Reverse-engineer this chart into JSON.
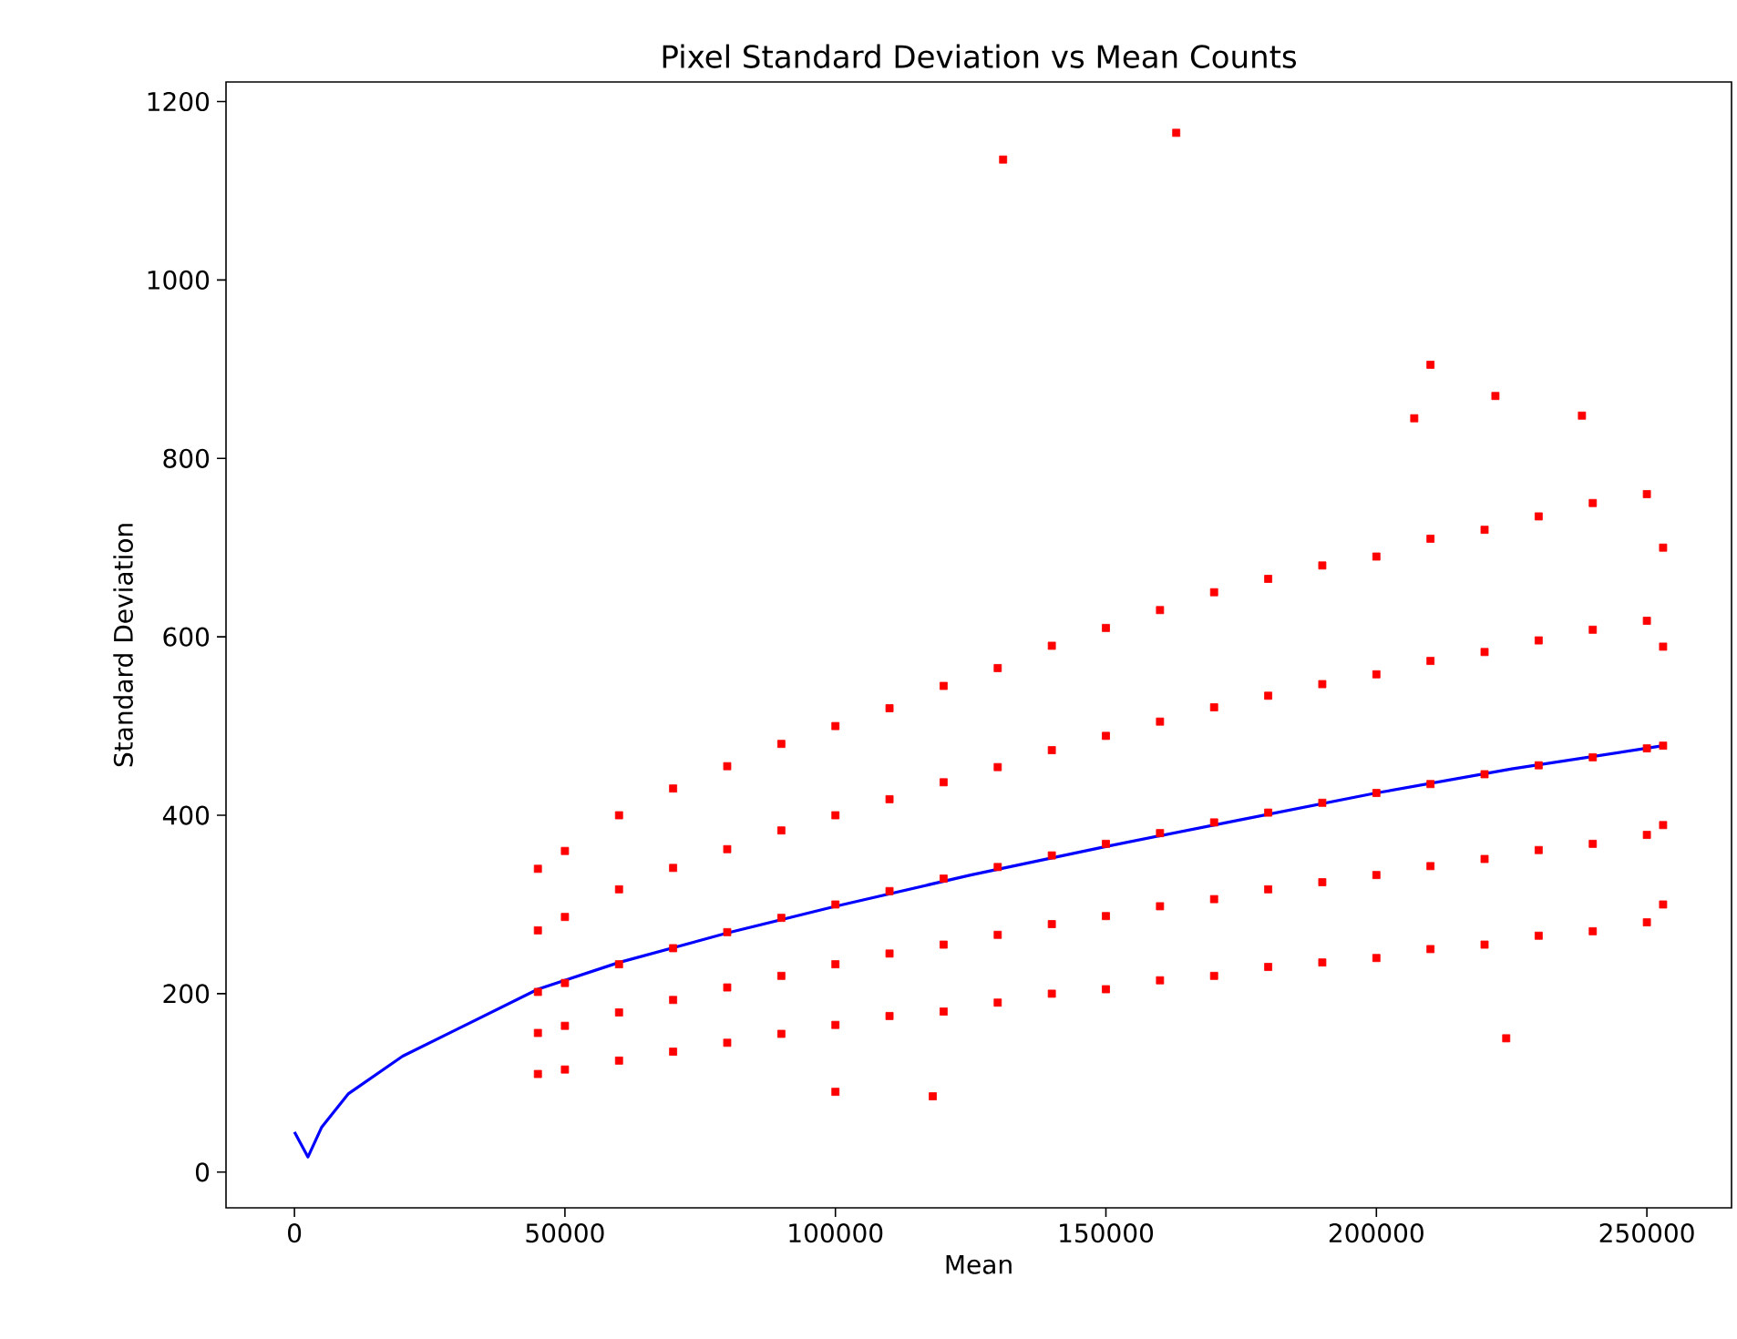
{
  "chart_data": {
    "type": "scatter",
    "title": "Pixel Standard Deviation vs Mean Counts",
    "xlabel": "Mean",
    "ylabel": "Standard Deviation",
    "xlim": [
      -12650,
      265650
    ],
    "ylim": [
      -40,
      1222
    ],
    "xticks": [
      0,
      50000,
      100000,
      150000,
      200000,
      250000
    ],
    "yticks": [
      0,
      200,
      400,
      600,
      800,
      1000,
      1200
    ],
    "series": [
      {
        "color": "#ff0000",
        "marker": "square",
        "x": [
          45000,
          45000,
          45000,
          45000,
          45000,
          50000,
          50000,
          50000,
          50000,
          50000,
          60000,
          60000,
          60000,
          60000,
          60000,
          70000,
          70000,
          70000,
          70000,
          70000,
          80000,
          80000,
          80000,
          80000,
          80000,
          90000,
          90000,
          90000,
          90000,
          90000,
          100000,
          100000,
          100000,
          100000,
          100000,
          110000,
          110000,
          110000,
          110000,
          110000,
          120000,
          120000,
          120000,
          120000,
          120000,
          130000,
          130000,
          130000,
          130000,
          130000,
          140000,
          140000,
          140000,
          140000,
          140000,
          150000,
          150000,
          150000,
          150000,
          150000,
          160000,
          160000,
          160000,
          160000,
          160000,
          170000,
          170000,
          170000,
          170000,
          170000,
          180000,
          180000,
          180000,
          180000,
          180000,
          190000,
          190000,
          190000,
          190000,
          190000,
          200000,
          200000,
          200000,
          200000,
          200000,
          210000,
          210000,
          210000,
          210000,
          210000,
          220000,
          220000,
          220000,
          220000,
          220000,
          230000,
          230000,
          230000,
          230000,
          230000,
          240000,
          240000,
          240000,
          240000,
          240000,
          250000,
          250000,
          250000,
          250000,
          250000,
          253000,
          253000,
          253000,
          253000,
          253000,
          131000,
          163000,
          210000,
          222000,
          207000,
          238000,
          118000,
          224000,
          100000
        ],
        "values": [
          110,
          156,
          202,
          271,
          340,
          115,
          164,
          212,
          286,
          360,
          125,
          179,
          233,
          317,
          400,
          135,
          193,
          251,
          341,
          430,
          145,
          207,
          269,
          362,
          455,
          155,
          220,
          285,
          383,
          480,
          165,
          233,
          300,
          400,
          500,
          175,
          245,
          315,
          418,
          520,
          180,
          255,
          329,
          437,
          545,
          190,
          266,
          342,
          454,
          565,
          200,
          278,
          355,
          473,
          590,
          205,
          287,
          368,
          489,
          610,
          215,
          298,
          380,
          505,
          630,
          220,
          306,
          392,
          521,
          650,
          230,
          317,
          403,
          534,
          665,
          235,
          325,
          414,
          547,
          680,
          240,
          333,
          425,
          558,
          690,
          250,
          343,
          435,
          573,
          710,
          255,
          351,
          446,
          583,
          720,
          265,
          361,
          456,
          596,
          735,
          270,
          368,
          465,
          608,
          750,
          280,
          378,
          475,
          618,
          760,
          300,
          389,
          478,
          589,
          700,
          1135,
          1165,
          905,
          870,
          845,
          848,
          85,
          150,
          90
        ]
      },
      {
        "type": "line",
        "color": "#0000ff",
        "marker": "none",
        "line_style": "solid",
        "x": [
          0,
          2500,
          5000,
          10000,
          20000,
          30000,
          45000,
          60000,
          80000,
          100000,
          125000,
          150000,
          175000,
          200000,
          225000,
          253000
        ],
        "values": [
          45,
          17,
          50,
          88,
          130,
          160,
          205,
          235,
          268,
          298,
          333,
          365,
          395,
          425,
          452,
          478
        ]
      }
    ]
  }
}
